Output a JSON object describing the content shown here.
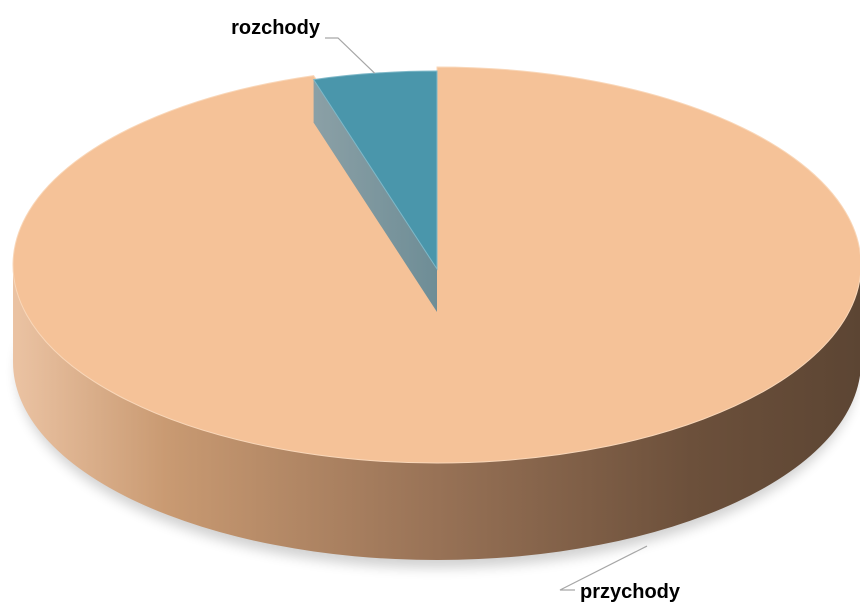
{
  "chart_data": {
    "type": "pie",
    "style": "3d",
    "title": "",
    "categories": [
      "przychody",
      "rozchody"
    ],
    "values": [
      95.3,
      4.7
    ],
    "exploded": [
      "rozchody"
    ],
    "legend": "none",
    "data_labels": "category-name",
    "colors": {
      "przychody": "#F5C298",
      "rozchody": "#4A96AB"
    }
  }
}
